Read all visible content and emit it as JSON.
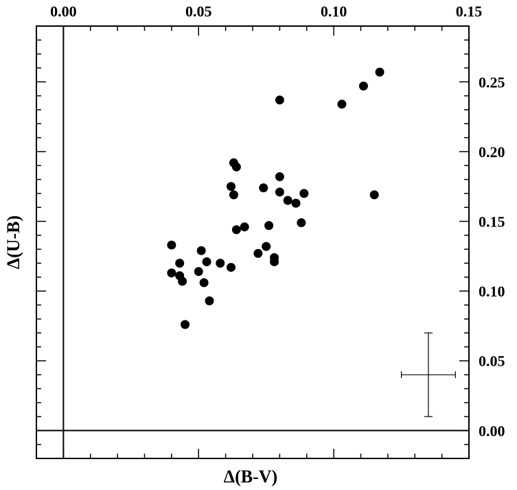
{
  "chart_data": {
    "type": "scatter",
    "xlabel": "Δ(B-V)",
    "ylabel": "Δ(U-B)",
    "xlim": [
      -0.01,
      0.15
    ],
    "ylim": [
      -0.02,
      0.29
    ],
    "x_tick_labels": [
      "0.00",
      "0.05",
      "0.10",
      "0.15"
    ],
    "y_tick_labels": [
      "0.00",
      "0.05",
      "0.10",
      "0.15",
      "0.20",
      "0.25"
    ],
    "grid": false,
    "reference_lines": {
      "x": 0.0,
      "y": 0.0
    },
    "points": [
      {
        "x": 0.117,
        "y": 0.257
      },
      {
        "x": 0.111,
        "y": 0.247
      },
      {
        "x": 0.08,
        "y": 0.237
      },
      {
        "x": 0.103,
        "y": 0.234
      },
      {
        "x": 0.063,
        "y": 0.192
      },
      {
        "x": 0.064,
        "y": 0.189
      },
      {
        "x": 0.08,
        "y": 0.182
      },
      {
        "x": 0.062,
        "y": 0.175
      },
      {
        "x": 0.074,
        "y": 0.174
      },
      {
        "x": 0.08,
        "y": 0.171
      },
      {
        "x": 0.089,
        "y": 0.17
      },
      {
        "x": 0.063,
        "y": 0.169
      },
      {
        "x": 0.115,
        "y": 0.169
      },
      {
        "x": 0.083,
        "y": 0.165
      },
      {
        "x": 0.086,
        "y": 0.163
      },
      {
        "x": 0.088,
        "y": 0.149
      },
      {
        "x": 0.076,
        "y": 0.147
      },
      {
        "x": 0.067,
        "y": 0.146
      },
      {
        "x": 0.064,
        "y": 0.144
      },
      {
        "x": 0.04,
        "y": 0.133
      },
      {
        "x": 0.075,
        "y": 0.132
      },
      {
        "x": 0.051,
        "y": 0.129
      },
      {
        "x": 0.072,
        "y": 0.127
      },
      {
        "x": 0.078,
        "y": 0.124
      },
      {
        "x": 0.053,
        "y": 0.121
      },
      {
        "x": 0.078,
        "y": 0.121
      },
      {
        "x": 0.043,
        "y": 0.12
      },
      {
        "x": 0.058,
        "y": 0.12
      },
      {
        "x": 0.062,
        "y": 0.117
      },
      {
        "x": 0.05,
        "y": 0.114
      },
      {
        "x": 0.04,
        "y": 0.113
      },
      {
        "x": 0.043,
        "y": 0.111
      },
      {
        "x": 0.044,
        "y": 0.107
      },
      {
        "x": 0.052,
        "y": 0.106
      },
      {
        "x": 0.054,
        "y": 0.093
      },
      {
        "x": 0.045,
        "y": 0.076
      }
    ],
    "error_bar": {
      "x": 0.135,
      "y": 0.04,
      "x_err": 0.01,
      "y_err": 0.03
    }
  }
}
